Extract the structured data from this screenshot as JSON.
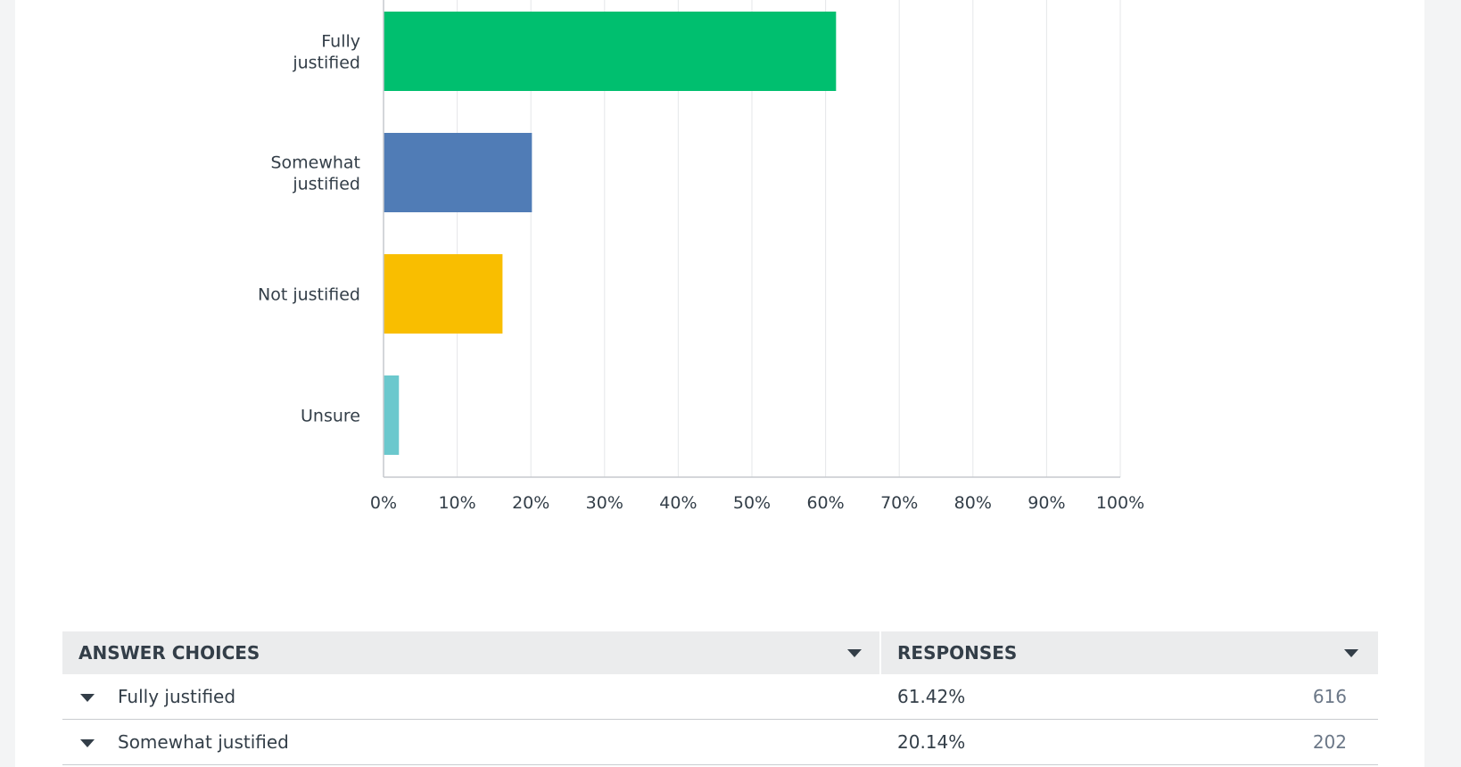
{
  "chart_data": {
    "type": "bar",
    "orientation": "horizontal",
    "categories": [
      [
        "Fully",
        "justified"
      ],
      [
        "Somewhat",
        "justified"
      ],
      [
        "Not justified"
      ],
      [
        "Unsure"
      ]
    ],
    "values": [
      61.42,
      20.14,
      16.15,
      2.09
    ],
    "colors": [
      "#00bf6f",
      "#507cb6",
      "#f9be00",
      "#6bc8cd"
    ],
    "xlim": [
      0,
      100
    ],
    "ticks": [
      0,
      10,
      20,
      30,
      40,
      50,
      60,
      70,
      80,
      90,
      100
    ],
    "tick_suffix": "%",
    "grid": true
  },
  "table": {
    "headers": {
      "choices": "ANSWER CHOICES",
      "responses": "RESPONSES"
    },
    "rows": [
      {
        "choice": "Fully justified",
        "percent": "61.42%",
        "count": "616"
      },
      {
        "choice": "Somewhat justified",
        "percent": "20.14%",
        "count": "202"
      }
    ]
  }
}
